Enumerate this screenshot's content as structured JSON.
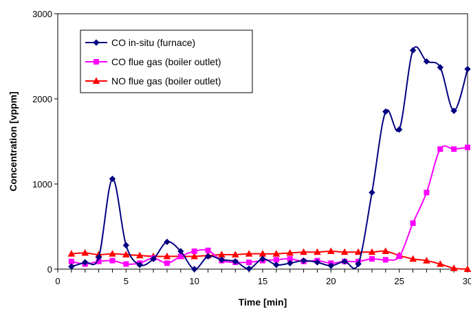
{
  "chart_data": {
    "type": "line",
    "title": "",
    "xlabel": "Time [min]",
    "ylabel": "Concentration  [vppm]",
    "xlim": [
      0,
      30
    ],
    "ylim": [
      0,
      3000
    ],
    "x_ticks": [
      0,
      5,
      10,
      15,
      20,
      25,
      30
    ],
    "y_ticks": [
      0,
      1000,
      2000,
      3000
    ],
    "grid": false,
    "legend_position": "top-left",
    "x": [
      1,
      2,
      3,
      4,
      5,
      6,
      7,
      8,
      9,
      10,
      11,
      12,
      13,
      14,
      15,
      16,
      17,
      18,
      19,
      20,
      21,
      22,
      23,
      24,
      25,
      26,
      27,
      28,
      29,
      30
    ],
    "series": [
      {
        "name": "CO in-situ (furnace)",
        "color": "#000080",
        "marker": "diamond",
        "values": [
          30,
          80,
          140,
          1060,
          280,
          50,
          120,
          320,
          210,
          0,
          150,
          110,
          90,
          5,
          120,
          50,
          70,
          100,
          80,
          40,
          90,
          60,
          900,
          1850,
          1640,
          2570,
          2440,
          2370,
          1860,
          2350
        ]
      },
      {
        "name": "CO flue gas (boiler outlet)",
        "color": "#ff00ff",
        "marker": "square",
        "values": [
          90,
          60,
          90,
          100,
          60,
          70,
          130,
          70,
          150,
          210,
          220,
          100,
          80,
          80,
          100,
          110,
          120,
          90,
          100,
          70,
          90,
          90,
          120,
          110,
          150,
          540,
          900,
          1410,
          1410,
          1430
        ]
      },
      {
        "name": "NO flue gas (boiler outlet)",
        "color": "#ff0000",
        "marker": "triangle",
        "values": [
          180,
          190,
          170,
          180,
          170,
          160,
          150,
          150,
          150,
          150,
          160,
          170,
          170,
          180,
          180,
          180,
          190,
          200,
          200,
          210,
          200,
          200,
          200,
          210,
          160,
          120,
          100,
          60,
          10,
          0
        ]
      }
    ]
  }
}
